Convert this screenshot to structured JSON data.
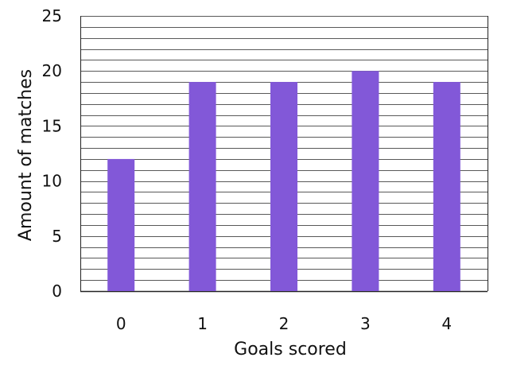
{
  "chart_data": {
    "type": "bar",
    "title": "",
    "xlabel": "Goals scored",
    "ylabel": "Amount of matches",
    "categories": [
      "0",
      "1",
      "2",
      "3",
      "4"
    ],
    "values": [
      12,
      19,
      19,
      20,
      19
    ],
    "ylim": [
      0,
      25
    ],
    "y_ticks": [
      "0",
      "5",
      "10",
      "15",
      "20",
      "25"
    ],
    "y_tick_values": [
      0,
      5,
      10,
      15,
      20,
      25
    ],
    "grid": true,
    "grid_minor_step": 1,
    "legend": "none",
    "colors": {
      "bar": "#8258d8",
      "grid": "#222222",
      "background": "#ffffff",
      "text": "#111111"
    }
  }
}
